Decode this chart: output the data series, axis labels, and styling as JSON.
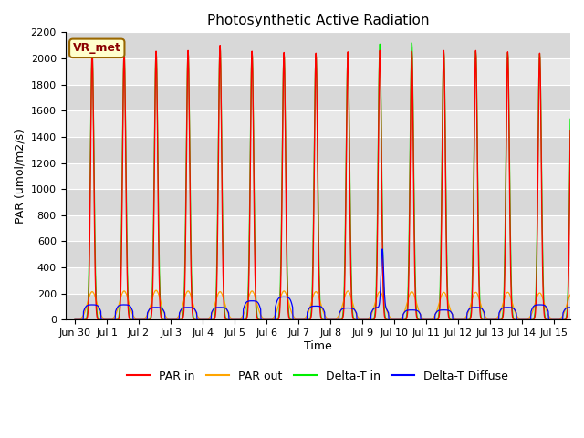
{
  "title": "Photosynthetic Active Radiation",
  "xlabel": "Time",
  "ylabel": "PAR (umol/m2/s)",
  "ylim": [
    0,
    2200
  ],
  "xlim": [
    -0.3,
    15.5
  ],
  "x_tick_positions": [
    0,
    1,
    2,
    3,
    4,
    5,
    6,
    7,
    8,
    9,
    10,
    11,
    12,
    13,
    14,
    15
  ],
  "x_tick_labels": [
    "Jun 30",
    "Jul 1",
    "Jul 2",
    "Jul 3",
    "Jul 4",
    "Jul 5",
    "Jul 6",
    "Jul 7",
    "Jul 8",
    "Jul 9",
    "Jul 10",
    "Jul 11",
    "Jul 12",
    "Jul 13",
    "Jul 14",
    "Jul 15"
  ],
  "y_ticks": [
    0,
    200,
    400,
    600,
    800,
    1000,
    1200,
    1400,
    1600,
    1800,
    2000,
    2200
  ],
  "annotation_text": "VR_met",
  "legend_labels": [
    "PAR in",
    "PAR out",
    "Delta-T in",
    "Delta-T Diffuse"
  ],
  "line_colors_par_in": "#ff0000",
  "line_colors_par_out": "#ffa500",
  "line_colors_dt_in": "#00ee00",
  "line_colors_dt_diff": "#0000ff",
  "background_color": "#ffffff",
  "plot_bg_color": "#e8e8e8",
  "grid_color": "#ffffff",
  "title_fontsize": 11,
  "axis_label_fontsize": 9,
  "tick_fontsize": 8,
  "legend_fontsize": 9,
  "par_in_peak": 2060,
  "par_out_peak": 220,
  "dt_in_peak": 2050,
  "dt_diff_base": 110,
  "dt_diff_spike": 450,
  "spike_day": 9.62,
  "day_rise_hour": 6.3,
  "day_fall_hour": 19.7
}
